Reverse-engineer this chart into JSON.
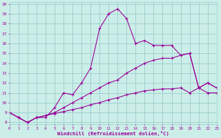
{
  "xlabel": "Windchill (Refroidissement éolien,°C)",
  "background_color": "#cceee8",
  "grid_color": "#99cccc",
  "line_color": "#990099",
  "line1_x": [
    0,
    1,
    2,
    3,
    4,
    5,
    6,
    7,
    8,
    9,
    10,
    11,
    12,
    13,
    14,
    15,
    16,
    17,
    18,
    19,
    20,
    21,
    22,
    23
  ],
  "line1_y": [
    9.0,
    8.5,
    8.0,
    8.5,
    8.5,
    9.5,
    11.0,
    10.8,
    12.0,
    13.5,
    17.5,
    19.0,
    19.5,
    18.5,
    16.0,
    16.3,
    15.8,
    15.8,
    15.8,
    14.8,
    15.0,
    11.5,
    12.0,
    11.5
  ],
  "line2_x": [
    0,
    1,
    2,
    3,
    4,
    5,
    6,
    7,
    8,
    9,
    10,
    11,
    12,
    13,
    14,
    15,
    16,
    17,
    18,
    19,
    20,
    21,
    22,
    23
  ],
  "line2_y": [
    9.0,
    8.5,
    8.0,
    8.5,
    8.7,
    9.0,
    9.5,
    10.0,
    10.5,
    11.0,
    11.5,
    12.0,
    12.3,
    13.0,
    13.5,
    14.0,
    14.3,
    14.5,
    14.5,
    14.8,
    15.0,
    11.5,
    12.0,
    11.5
  ],
  "line3_x": [
    0,
    1,
    2,
    3,
    4,
    5,
    6,
    7,
    8,
    9,
    10,
    11,
    12,
    13,
    14,
    15,
    16,
    17,
    18,
    19,
    20,
    21,
    22,
    23
  ],
  "line3_y": [
    9.0,
    8.5,
    8.0,
    8.5,
    8.7,
    8.9,
    9.1,
    9.3,
    9.5,
    9.8,
    10.0,
    10.3,
    10.5,
    10.8,
    11.0,
    11.2,
    11.3,
    11.4,
    11.4,
    11.5,
    11.0,
    11.5,
    11.0,
    11.0
  ],
  "xlim": [
    0,
    23
  ],
  "ylim": [
    7.8,
    20.2
  ],
  "yticks": [
    8,
    9,
    10,
    11,
    12,
    13,
    14,
    15,
    16,
    17,
    18,
    19,
    20
  ],
  "xticks": [
    0,
    1,
    2,
    3,
    4,
    5,
    6,
    7,
    8,
    9,
    10,
    11,
    12,
    13,
    14,
    15,
    16,
    17,
    18,
    19,
    20,
    21,
    22,
    23
  ]
}
